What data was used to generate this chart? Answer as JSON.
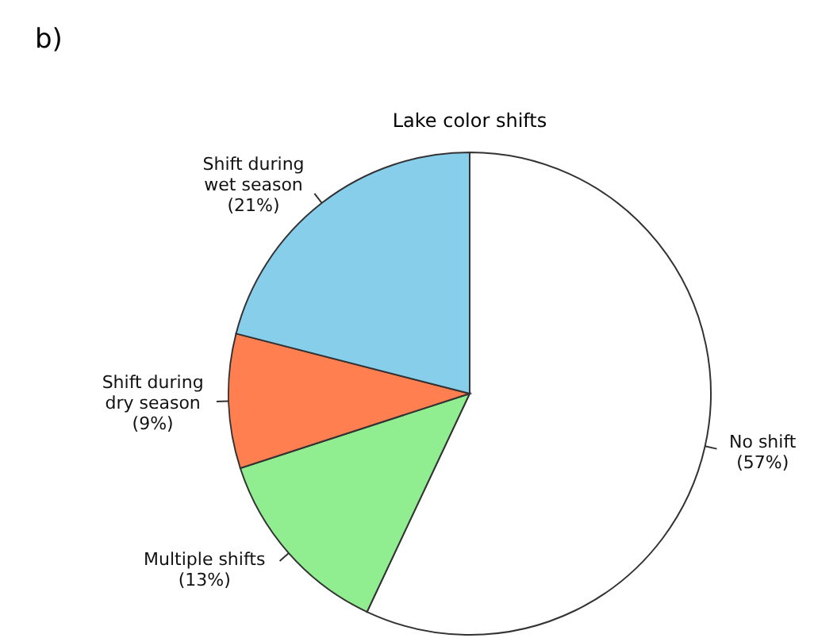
{
  "chart_data": {
    "type": "pie",
    "title": "Lake color shifts",
    "annotations": [
      "b)"
    ],
    "categories": [
      "No shift",
      "Multiple shifts",
      "Shift during\ndry season",
      "Shift during\nwet season"
    ],
    "values": [
      57,
      13,
      9,
      21
    ],
    "colors": [
      "#ffffff",
      "#90ee90",
      "#ff7f50",
      "#87ceeb"
    ],
    "value_labels": [
      "(57%)",
      "(13%)",
      "(9%)",
      "(21%)"
    ],
    "legend": false
  }
}
